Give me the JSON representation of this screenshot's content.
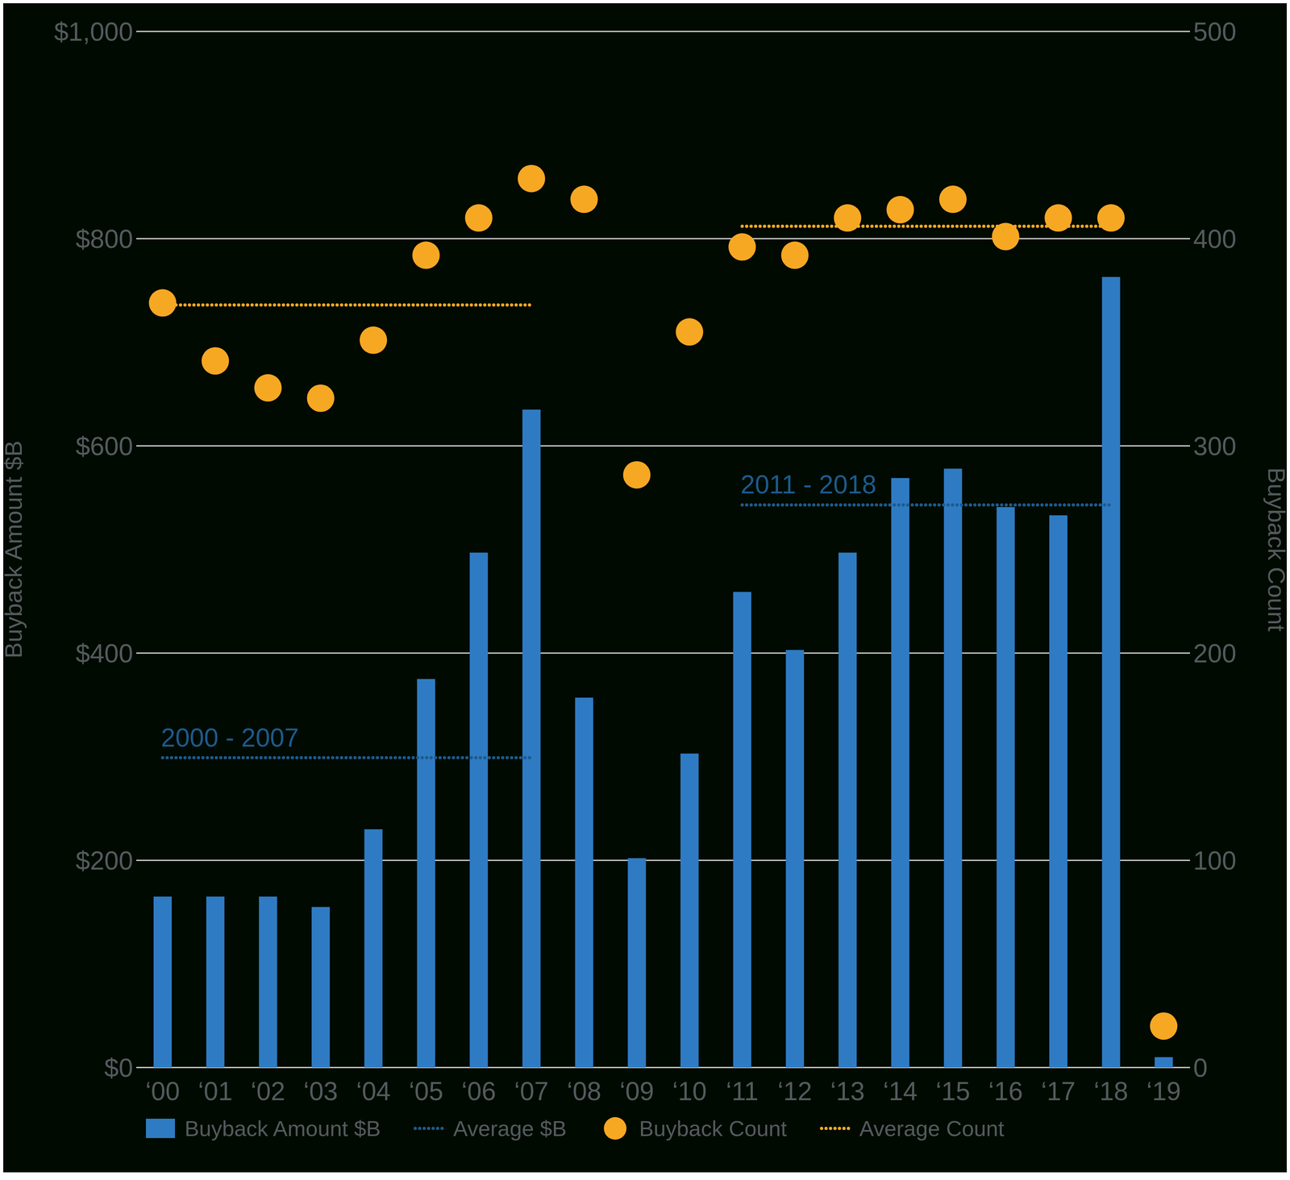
{
  "chart_data": {
    "type": "bar",
    "categories": [
      "‘00",
      "‘01",
      "‘02",
      "‘03",
      "‘04",
      "‘05",
      "‘06",
      "‘07",
      "‘08",
      "‘09",
      "‘10",
      "‘11",
      "‘12",
      "‘13",
      "‘14",
      "‘15",
      "‘16",
      "‘17",
      "‘18",
      "‘19"
    ],
    "series": [
      {
        "name": "Buyback Amount $B",
        "type": "bar",
        "color": "#2f7bc3",
        "values": [
          165,
          165,
          165,
          155,
          230,
          375,
          497,
          635,
          357,
          202,
          303,
          459,
          403,
          497,
          569,
          578,
          541,
          533,
          763,
          10
        ]
      },
      {
        "name": "Average $B",
        "type": "line",
        "line_style": "dotted",
        "color": "#1d5a8c",
        "values": [
          299,
          299,
          299,
          299,
          299,
          299,
          299,
          299,
          null,
          null,
          null,
          543,
          543,
          543,
          543,
          543,
          543,
          543,
          543,
          null
        ]
      },
      {
        "name": "Buyback Count",
        "type": "scatter",
        "marker": "circle",
        "axis": "y2",
        "color": "#f7a823",
        "values": [
          369,
          341,
          328,
          323,
          351,
          392,
          410,
          429,
          419,
          286,
          355,
          396,
          392,
          410,
          414,
          419,
          401,
          410,
          410,
          20
        ]
      },
      {
        "name": "Average Count",
        "type": "line",
        "line_style": "dotted",
        "axis": "y2",
        "color": "#f7a823",
        "values": [
          368,
          368,
          368,
          368,
          368,
          368,
          368,
          368,
          null,
          null,
          null,
          406,
          406,
          406,
          406,
          406,
          406,
          406,
          406,
          null
        ]
      }
    ],
    "annotations": [
      {
        "text": "2000 - 2007",
        "x": "‘00",
        "y": 299,
        "color": "#1d5a8c"
      },
      {
        "text": "2011 - 2018",
        "x": "‘11",
        "y": 543,
        "color": "#1d5a8c"
      }
    ],
    "y_label": "Buyback Amount $B",
    "y2_label": "Buyback Count",
    "ylim": [
      0,
      1000
    ],
    "yticks": [
      {
        "value": 0,
        "label": "$0"
      },
      {
        "value": 200,
        "label": "$200"
      },
      {
        "value": 400,
        "label": "$400"
      },
      {
        "value": 600,
        "label": "$600"
      },
      {
        "value": 800,
        "label": "$800"
      },
      {
        "value": 1000,
        "label": "$1,000"
      }
    ],
    "y2lim": [
      0,
      500
    ],
    "y2ticks": [
      0,
      100,
      200,
      300,
      400,
      500
    ],
    "grid": true,
    "legend": "bottom"
  }
}
